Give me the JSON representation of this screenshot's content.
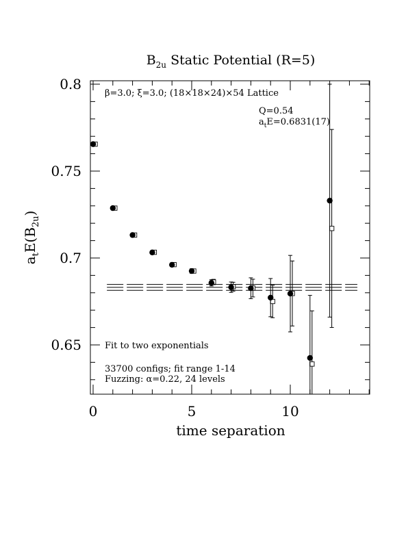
{
  "chart_data": {
    "type": "scatter",
    "title": {
      "main": "B",
      "sub": "2u",
      "rest": " Static Potential (R=5)"
    },
    "xlabel": "time separation",
    "ylabel": {
      "a": "a",
      "asub": "t",
      "b": "E(B",
      "bsub": "2u",
      "c": ")"
    },
    "xlim": [
      0,
      14
    ],
    "ylim": [
      0.621,
      0.803
    ],
    "xticks": [
      {
        "v": 0,
        "label": "0"
      },
      {
        "v": 5,
        "label": "5"
      },
      {
        "v": 10,
        "label": "10"
      }
    ],
    "yticks": [
      {
        "v": 0.65,
        "label": "0.65"
      },
      {
        "v": 0.7,
        "label": "0.7"
      },
      {
        "v": 0.75,
        "label": "0.75"
      },
      {
        "v": 0.8,
        "label": "0.8"
      }
    ],
    "annotations": {
      "lattice": "β=3.0; ξ=3.0; (18×18×24)×54 Lattice",
      "q": "Q=0.54",
      "energy_a": "a",
      "energy_sub": "t",
      "energy_rest": "E=0.6831(17)",
      "fit_type": "Fit to two exponentials",
      "configs": "33700 configs; fit range 1-14",
      "fuzzing": "Fuzzing: α=0.22, 24 levels"
    },
    "fit": {
      "value": 0.6831,
      "error": 0.0017,
      "x_range": [
        1,
        14
      ]
    },
    "series": [
      {
        "marker": "filled-circle",
        "points": [
          {
            "x": 0,
            "y": 0.7655,
            "err": 0.0005
          },
          {
            "x": 1,
            "y": 0.7287,
            "err": 0.0006
          },
          {
            "x": 2,
            "y": 0.7132,
            "err": 0.0007
          },
          {
            "x": 3,
            "y": 0.7032,
            "err": 0.0008
          },
          {
            "x": 4,
            "y": 0.6961,
            "err": 0.001
          },
          {
            "x": 5,
            "y": 0.6925,
            "err": 0.0013
          },
          {
            "x": 6,
            "y": 0.6857,
            "err": 0.0018
          },
          {
            "x": 7,
            "y": 0.6832,
            "err": 0.003
          },
          {
            "x": 8,
            "y": 0.6826,
            "err": 0.006
          },
          {
            "x": 9,
            "y": 0.6772,
            "err": 0.011
          },
          {
            "x": 10,
            "y": 0.6795,
            "err": 0.022
          },
          {
            "x": 11,
            "y": 0.6425,
            "err": 0.036
          },
          {
            "x": 12,
            "y": 0.733,
            "err": 0.067
          }
        ]
      },
      {
        "marker": "open-square",
        "points": [
          {
            "x": 0,
            "y": 0.7655
          },
          {
            "x": 1,
            "y": 0.7287
          },
          {
            "x": 2,
            "y": 0.7132
          },
          {
            "x": 3,
            "y": 0.7033
          },
          {
            "x": 4,
            "y": 0.6962
          },
          {
            "x": 5,
            "y": 0.6925
          },
          {
            "x": 6,
            "y": 0.6862
          },
          {
            "x": 7,
            "y": 0.6835
          },
          {
            "x": 8,
            "y": 0.6827
          },
          {
            "x": 9,
            "y": 0.675
          },
          {
            "x": 10,
            "y": 0.6796
          },
          {
            "x": 11,
            "y": 0.639
          },
          {
            "x": 12,
            "y": 0.717
          }
        ]
      }
    ]
  }
}
